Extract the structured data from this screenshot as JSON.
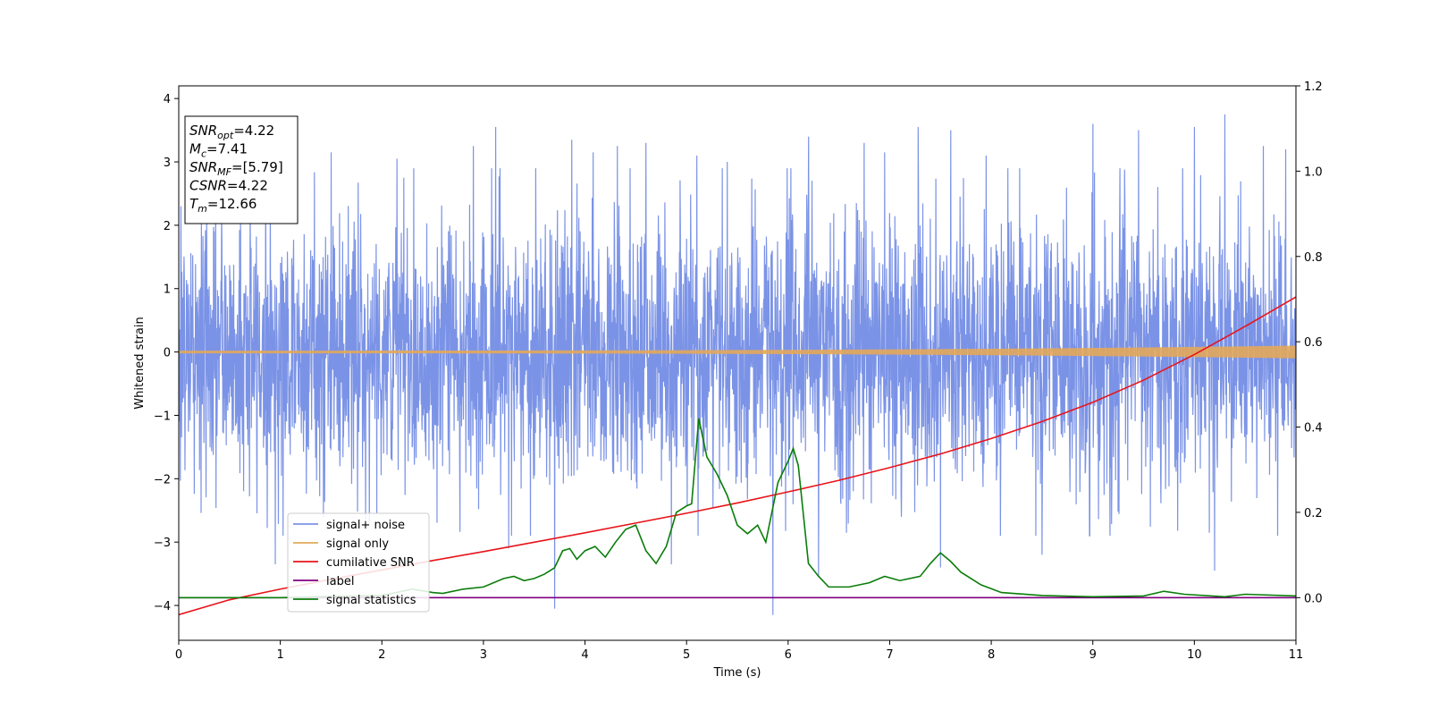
{
  "chart_data": {
    "type": "line",
    "xlabel": "Time (s)",
    "ylabel": "Whitened strain",
    "xlim": [
      0,
      11
    ],
    "ylim": [
      -4.55,
      4.2
    ],
    "y2lim": [
      -0.1,
      1.2
    ],
    "x_ticks": [
      0,
      1,
      2,
      3,
      4,
      5,
      6,
      7,
      8,
      9,
      10,
      11
    ],
    "y_ticks": [
      4,
      3,
      2,
      1,
      0,
      -1,
      -2,
      -3,
      -4
    ],
    "y_tick_labels": [
      "4",
      "3",
      "2",
      "1",
      "0",
      "−1",
      "−2",
      "−3",
      "−4"
    ],
    "y2_ticks": [
      1.2,
      1.0,
      0.8,
      0.6,
      0.4,
      0.2,
      0.0
    ],
    "y2_tick_labels": [
      "1.2",
      "1.0",
      "0.8",
      "0.6",
      "0.4",
      "0.2",
      "0.0"
    ],
    "legend_location": "lower left",
    "annotation": {
      "lines": [
        {
          "base": "SNR",
          "sub": "opt",
          "value": "=4.22"
        },
        {
          "base": "M",
          "sub": "c",
          "value": "=7.41"
        },
        {
          "base": "SNR",
          "sub": "MF",
          "value": "=[5.79]"
        },
        {
          "base": "CSNR",
          "sub": "",
          "value": "=4.22"
        },
        {
          "base": "T",
          "sub": "m",
          "value": "=12.66"
        }
      ]
    },
    "series": [
      {
        "name": "signal+ noise",
        "color": "#7b93e6",
        "axis": "left",
        "kind": "noise",
        "noise_std": 1.05,
        "peaks": [
          [
            0.02,
            2.3
          ],
          [
            0.95,
            -3.35
          ],
          [
            1.5,
            3.15
          ],
          [
            2.15,
            3.05
          ],
          [
            2.9,
            3.25
          ],
          [
            3.12,
            3.55
          ],
          [
            3.25,
            -3.1
          ],
          [
            3.7,
            -4.05
          ],
          [
            3.87,
            3.35
          ],
          [
            4.08,
            3.15
          ],
          [
            4.32,
            3.25
          ],
          [
            4.6,
            3.3
          ],
          [
            4.85,
            -3.35
          ],
          [
            5.1,
            3.1
          ],
          [
            5.4,
            3.0
          ],
          [
            5.85,
            -4.15
          ],
          [
            6.2,
            3.4
          ],
          [
            6.3,
            -3.55
          ],
          [
            6.75,
            3.3
          ],
          [
            6.95,
            3.15
          ],
          [
            7.28,
            3.55
          ],
          [
            7.5,
            -3.4
          ],
          [
            7.6,
            3.5
          ],
          [
            7.95,
            3.1
          ],
          [
            8.5,
            -3.2
          ],
          [
            9.0,
            3.6
          ],
          [
            9.45,
            3.5
          ],
          [
            10.0,
            3.55
          ],
          [
            10.2,
            -3.45
          ],
          [
            10.3,
            3.75
          ],
          [
            10.68,
            3.25
          ],
          [
            10.9,
            3.2
          ]
        ]
      },
      {
        "name": "signal only",
        "color": "#e3a95a",
        "axis": "left",
        "kind": "chirp",
        "amp_start": 0.02,
        "amp_end": 0.1
      },
      {
        "name": "cumilative SNR",
        "color": "#e8141a",
        "axis": "right",
        "kind": "line",
        "points": [
          [
            0,
            -0.04
          ],
          [
            0.5,
            -0.005
          ],
          [
            1.0,
            0.02
          ],
          [
            1.5,
            0.043
          ],
          [
            2.0,
            0.065
          ],
          [
            2.5,
            0.087
          ],
          [
            3.0,
            0.108
          ],
          [
            3.5,
            0.13
          ],
          [
            4.0,
            0.152
          ],
          [
            4.5,
            0.175
          ],
          [
            5.0,
            0.198
          ],
          [
            5.5,
            0.222
          ],
          [
            6.0,
            0.248
          ],
          [
            6.5,
            0.275
          ],
          [
            7.0,
            0.305
          ],
          [
            7.5,
            0.337
          ],
          [
            8.0,
            0.373
          ],
          [
            8.5,
            0.413
          ],
          [
            9.0,
            0.458
          ],
          [
            9.5,
            0.51
          ],
          [
            10.0,
            0.57
          ],
          [
            10.5,
            0.636
          ],
          [
            11.0,
            0.705
          ]
        ]
      },
      {
        "name": "label",
        "color": "#800080",
        "axis": "right",
        "kind": "line",
        "points": [
          [
            0,
            0.0
          ],
          [
            11,
            0.0
          ]
        ]
      },
      {
        "name": "signal statistics",
        "color": "#0a7d0a",
        "axis": "right",
        "kind": "line",
        "points": [
          [
            0,
            0.0
          ],
          [
            1.0,
            0.0
          ],
          [
            1.5,
            0.003
          ],
          [
            2.0,
            0.005
          ],
          [
            2.3,
            0.02
          ],
          [
            2.5,
            0.012
          ],
          [
            2.6,
            0.01
          ],
          [
            2.8,
            0.02
          ],
          [
            3.0,
            0.025
          ],
          [
            3.2,
            0.045
          ],
          [
            3.3,
            0.05
          ],
          [
            3.4,
            0.04
          ],
          [
            3.5,
            0.045
          ],
          [
            3.6,
            0.055
          ],
          [
            3.7,
            0.07
          ],
          [
            3.78,
            0.11
          ],
          [
            3.85,
            0.115
          ],
          [
            3.92,
            0.09
          ],
          [
            4.0,
            0.11
          ],
          [
            4.1,
            0.12
          ],
          [
            4.2,
            0.095
          ],
          [
            4.3,
            0.13
          ],
          [
            4.4,
            0.16
          ],
          [
            4.5,
            0.17
          ],
          [
            4.6,
            0.11
          ],
          [
            4.7,
            0.08
          ],
          [
            4.8,
            0.12
          ],
          [
            4.9,
            0.2
          ],
          [
            5.0,
            0.215
          ],
          [
            5.05,
            0.22
          ],
          [
            5.12,
            0.42
          ],
          [
            5.2,
            0.33
          ],
          [
            5.3,
            0.29
          ],
          [
            5.4,
            0.24
          ],
          [
            5.5,
            0.17
          ],
          [
            5.6,
            0.15
          ],
          [
            5.7,
            0.17
          ],
          [
            5.78,
            0.13
          ],
          [
            5.9,
            0.27
          ],
          [
            6.0,
            0.32
          ],
          [
            6.05,
            0.35
          ],
          [
            6.1,
            0.31
          ],
          [
            6.2,
            0.08
          ],
          [
            6.3,
            0.05
          ],
          [
            6.4,
            0.025
          ],
          [
            6.6,
            0.025
          ],
          [
            6.8,
            0.035
          ],
          [
            6.95,
            0.05
          ],
          [
            7.1,
            0.04
          ],
          [
            7.3,
            0.05
          ],
          [
            7.4,
            0.08
          ],
          [
            7.5,
            0.105
          ],
          [
            7.6,
            0.085
          ],
          [
            7.7,
            0.06
          ],
          [
            7.9,
            0.03
          ],
          [
            8.1,
            0.012
          ],
          [
            8.5,
            0.005
          ],
          [
            9.0,
            0.002
          ],
          [
            9.5,
            0.004
          ],
          [
            9.7,
            0.015
          ],
          [
            9.9,
            0.008
          ],
          [
            10.3,
            0.002
          ],
          [
            10.5,
            0.008
          ],
          [
            11.0,
            0.004
          ]
        ]
      }
    ]
  }
}
